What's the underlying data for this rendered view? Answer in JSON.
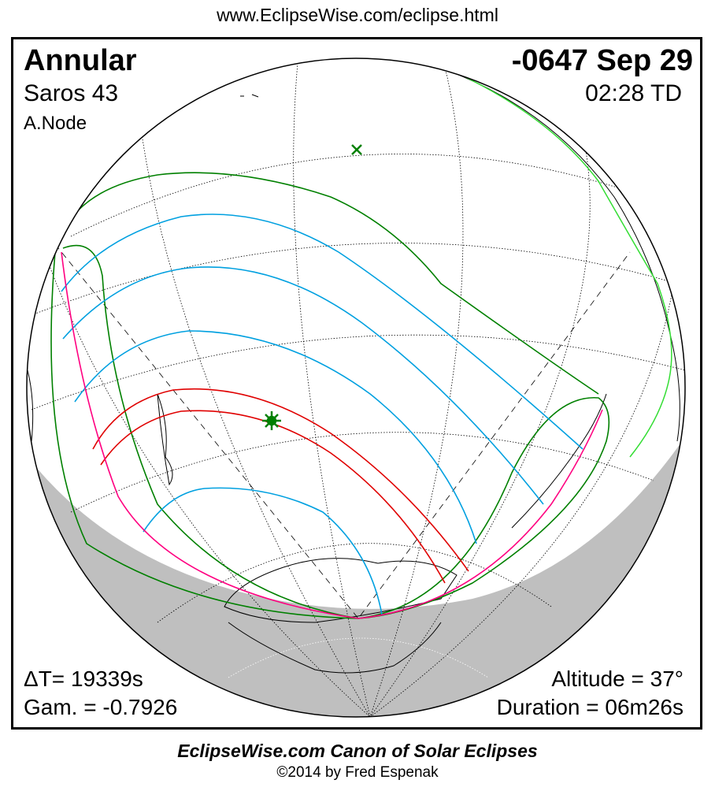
{
  "header": {
    "url": "www.EclipseWise.com/eclipse.html"
  },
  "eclipse": {
    "type": "Annular",
    "date": "-0647 Sep 29",
    "saros": "Saros  43",
    "time": "02:28 TD",
    "node": "A.Node",
    "delta_t": "ΔT=  19339s",
    "gamma": "Gam. = -0.7926",
    "altitude": "Altitude = 37°",
    "duration": "Duration = 06m26s"
  },
  "footer": {
    "canon": "EclipseWise.com Canon of Solar Eclipses",
    "copyright": "©2014 by Fred Espenak"
  },
  "colors": {
    "penumbral_limits": "#008000",
    "partial_lines": "#00a0e0",
    "central_path": "#e00000",
    "rise_set": "#ff0080",
    "night": "#bfbfbf",
    "coast_highlight": "#33dd33"
  }
}
